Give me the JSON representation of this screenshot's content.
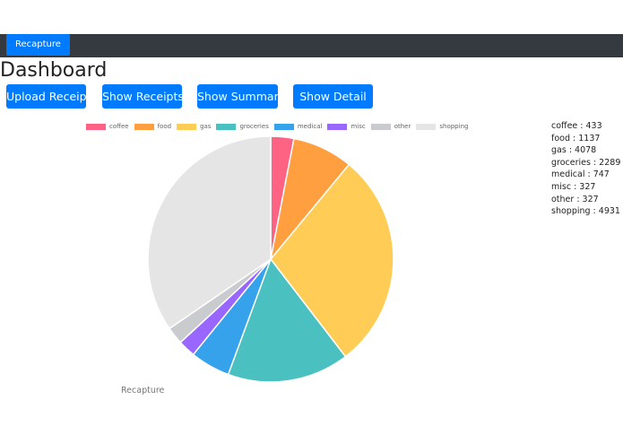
{
  "navbar": {
    "brand": "Recapture"
  },
  "page_title": "Dashboard",
  "buttons": {
    "upload": "Upload Receipt",
    "receipts": "Show Receipts",
    "summary": "Show Summary",
    "detail": "Show Detail"
  },
  "footer": "Recapture",
  "chart_data": {
    "type": "pie",
    "legend_position": "top",
    "categories": [
      "coffee",
      "food",
      "gas",
      "groceries",
      "medical",
      "misc",
      "other",
      "shopping"
    ],
    "values": [
      433,
      1137,
      4078,
      2289,
      747,
      327,
      327,
      4931
    ],
    "colors": [
      "#ff6384",
      "#ff9f40",
      "#ffcd56",
      "#4bc0c0",
      "#36a2eb",
      "#9966ff",
      "#c9cbcf",
      "#e5e5e5"
    ]
  },
  "totals": [
    "coffee : 433",
    "food : 1137",
    "gas : 4078",
    "groceries : 2289",
    "medical : 747",
    "misc : 327",
    "other : 327",
    "shopping : 4931"
  ]
}
